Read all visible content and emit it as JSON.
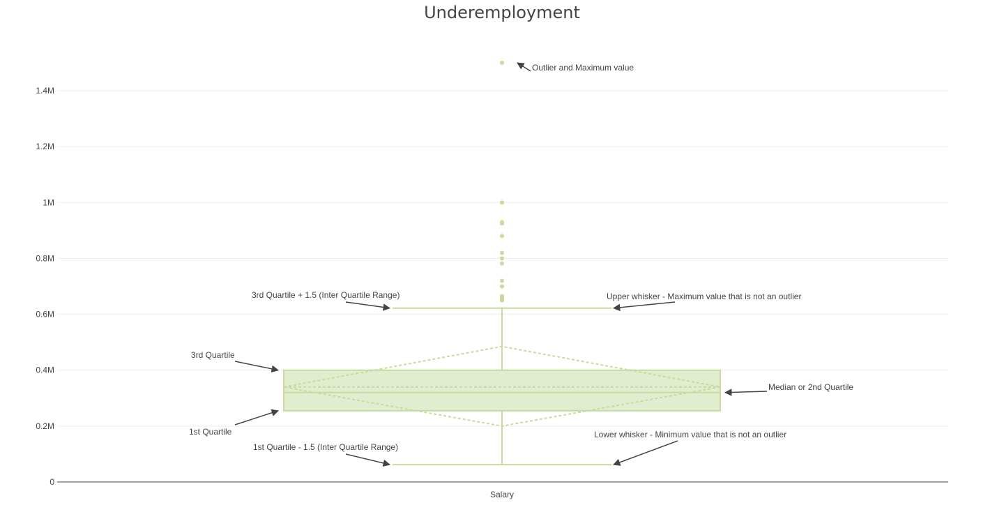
{
  "chart_data": {
    "type": "box",
    "title": "Underemployment",
    "xlabel": "",
    "ylabel": "",
    "category": "Salary",
    "ylim": [
      0,
      1550000
    ],
    "yticks": [
      {
        "value": 0,
        "label": "0"
      },
      {
        "value": 200000,
        "label": "0.2M"
      },
      {
        "value": 400000,
        "label": "0.4M"
      },
      {
        "value": 600000,
        "label": "0.6M"
      },
      {
        "value": 800000,
        "label": "0.8M"
      },
      {
        "value": 1000000,
        "label": "1M"
      },
      {
        "value": 1200000,
        "label": "1.2M"
      },
      {
        "value": 1400000,
        "label": "1.4M"
      }
    ],
    "grid": true,
    "color": "#c6dba0",
    "box": {
      "q1": 255000,
      "median": 320000,
      "q3": 400000,
      "mean": 340000,
      "mean_ci_low": 200000,
      "mean_ci_high": 485000,
      "lower_whisker": 62000,
      "upper_whisker": 622000
    },
    "outliers": [
      650000,
      655000,
      660000,
      662000,
      665000,
      700000,
      720000,
      782000,
      800000,
      820000,
      880000,
      925000,
      930000,
      1000000,
      1500000
    ],
    "annotations": [
      {
        "text": "Outlier and Maximum value",
        "target": "max_outlier",
        "side": "right"
      },
      {
        "text": "Upper whisker - Maximum value that is not an outlier",
        "target": "upper_whisker",
        "side": "right"
      },
      {
        "text": "3rd Quartile + 1.5 (Inter Quartile Range)",
        "target": "upper_whisker",
        "side": "left"
      },
      {
        "text": "3rd Quartile",
        "target": "q3",
        "side": "left"
      },
      {
        "text": "Median or 2nd Quartile",
        "target": "median",
        "side": "right"
      },
      {
        "text": "1st Quartile",
        "target": "q1",
        "side": "left"
      },
      {
        "text": "1st Quartile - 1.5 (Inter Quartile Range)",
        "target": "lower_whisker",
        "side": "left"
      },
      {
        "text": "Lower whisker - Minimum value that is not an outlier",
        "target": "lower_whisker",
        "side": "right"
      }
    ]
  }
}
